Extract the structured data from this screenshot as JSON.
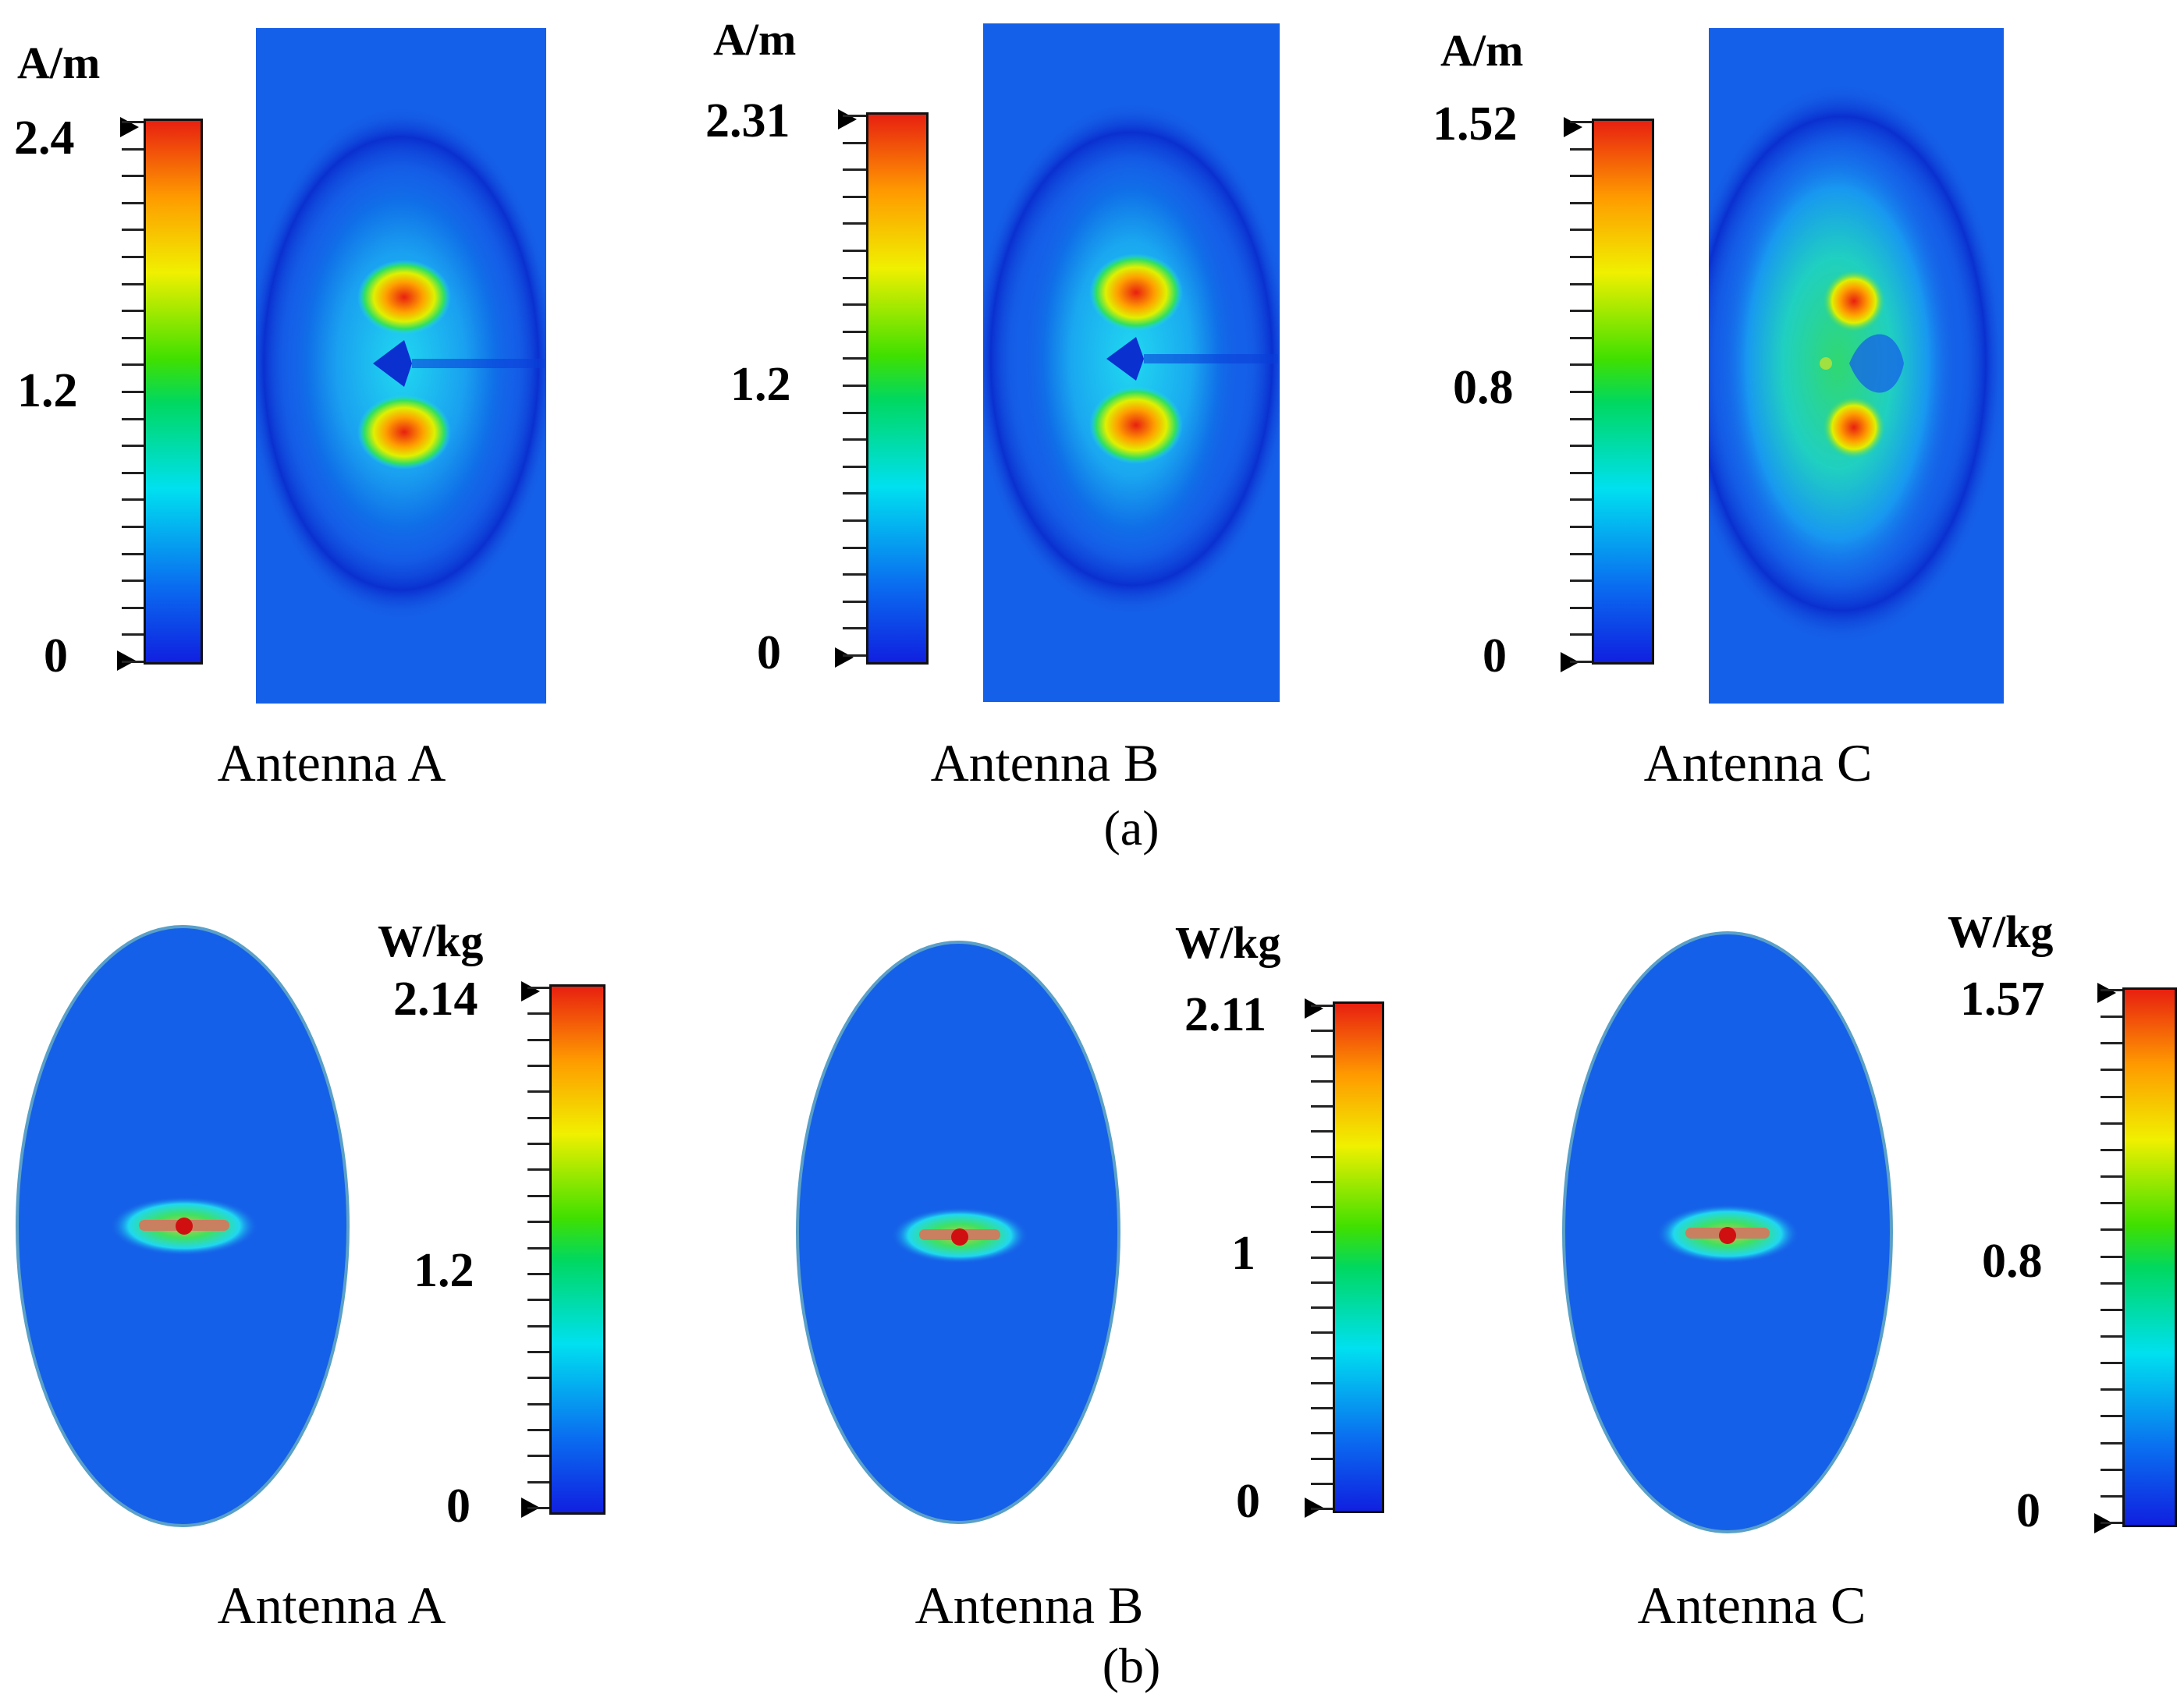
{
  "panel_a": {
    "label": "(a)",
    "plots": [
      {
        "antenna": "Antenna A",
        "unit": "A/m",
        "max_label": "2.4",
        "mid_label": "1.2",
        "min_label": "0"
      },
      {
        "antenna": "Antenna B",
        "unit": "A/m",
        "max_label": "2.31",
        "mid_label": "1.2",
        "min_label": "0"
      },
      {
        "antenna": "Antenna C",
        "unit": "A/m",
        "max_label": "1.52",
        "mid_label": "0.8",
        "min_label": "0"
      }
    ]
  },
  "panel_b": {
    "label": "(b)",
    "plots": [
      {
        "antenna": "Antenna A",
        "unit": "W/kg",
        "max_label": "2.14",
        "mid_label": "1.2",
        "min_label": "0"
      },
      {
        "antenna": "Antenna B",
        "unit": "W/kg",
        "max_label": "2.11",
        "mid_label": "1",
        "min_label": "0"
      },
      {
        "antenna": "Antenna C",
        "unit": "W/kg",
        "max_label": "1.57",
        "mid_label": "0.8",
        "min_label": "0"
      }
    ]
  },
  "colors": {
    "background_field": "#1560e8",
    "colormap_low": "#1020e0",
    "colormap_mid": "#00d860",
    "colormap_high": "#e82010"
  }
}
